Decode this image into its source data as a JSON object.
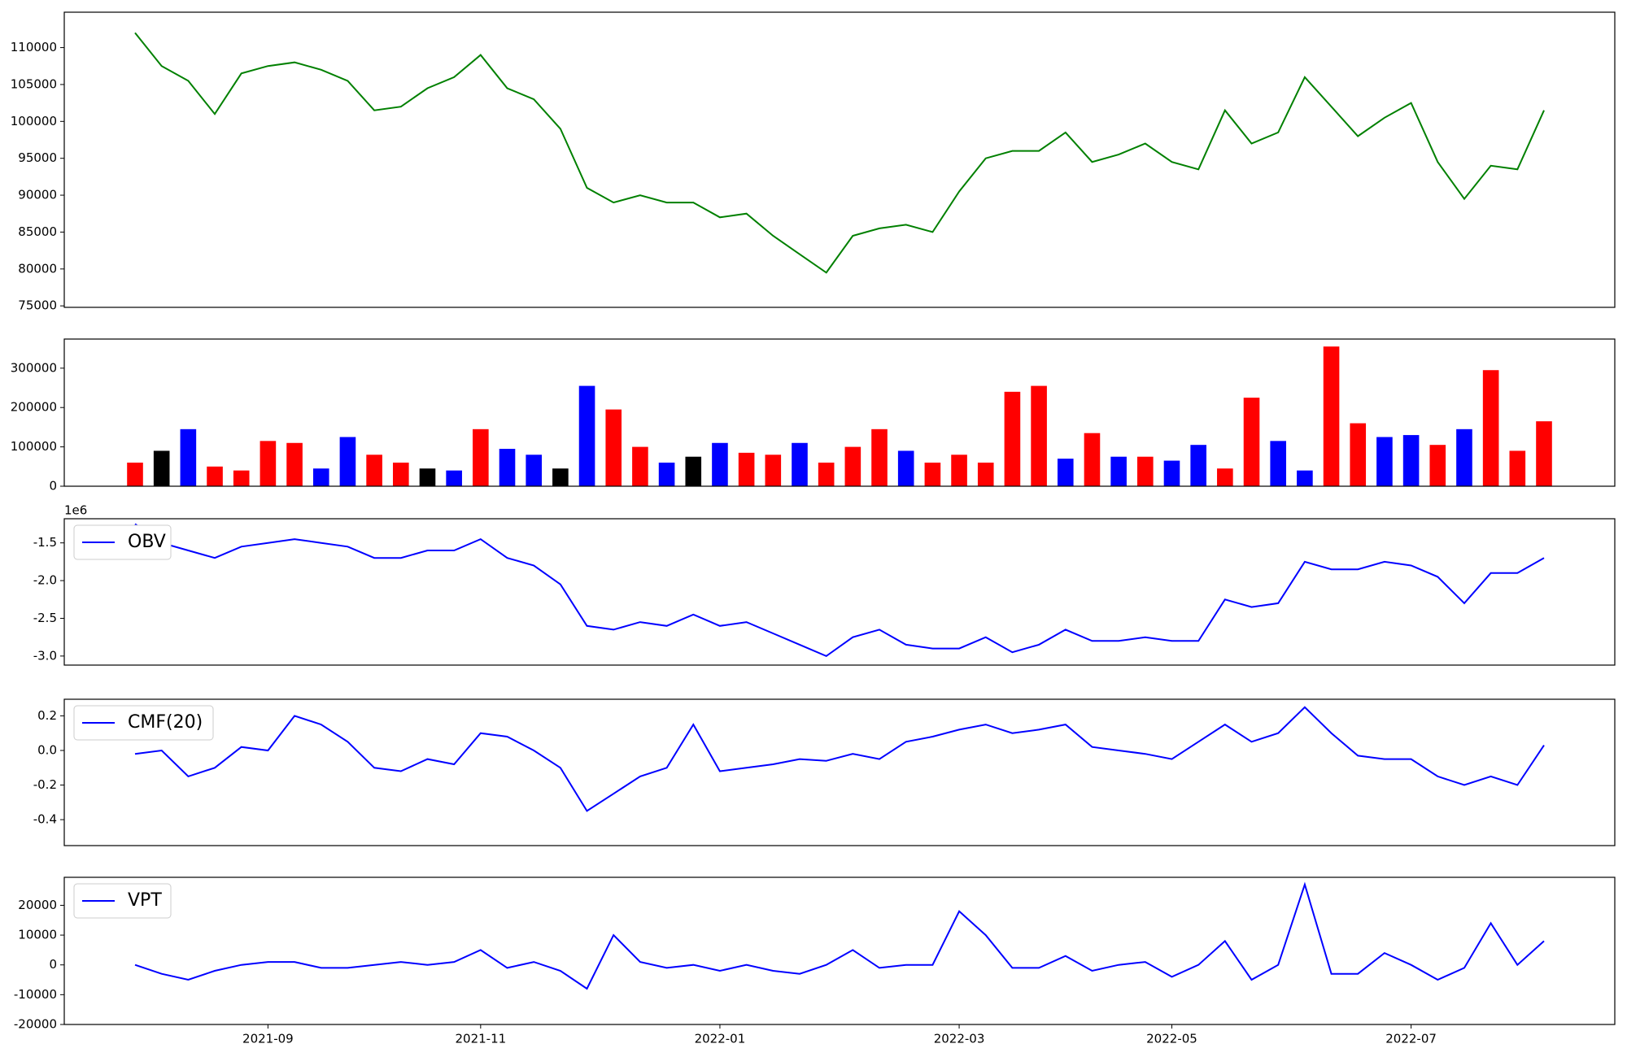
{
  "chart_data": [
    {
      "type": "line",
      "color": "green",
      "values": [
        112000,
        107500,
        105500,
        101000,
        106500,
        107500,
        108000,
        107000,
        105500,
        101500,
        102000,
        104500,
        106000,
        109000,
        104500,
        103000,
        99000,
        91000,
        89000,
        90000,
        89000,
        89000,
        87000,
        87500,
        84500,
        82000,
        79500,
        84500,
        85500,
        86000,
        85000,
        90500,
        95000,
        96000,
        96000,
        98500,
        94500,
        95500,
        97000,
        94500,
        93500,
        101500,
        97000,
        98500,
        106000,
        102000,
        98000,
        100500,
        102500,
        94500,
        89500,
        94000,
        93500,
        101500
      ],
      "ylim": [
        74800,
        114800
      ],
      "yticks": [
        75000,
        80000,
        85000,
        90000,
        95000,
        100000,
        105000,
        110000
      ]
    },
    {
      "type": "bar",
      "values": [
        60000,
        90000,
        145000,
        50000,
        40000,
        115000,
        110000,
        45000,
        125000,
        80000,
        60000,
        45000,
        40000,
        145000,
        95000,
        80000,
        45000,
        255000,
        195000,
        100000,
        60000,
        75000,
        110000,
        85000,
        80000,
        110000,
        60000,
        100000,
        145000,
        90000,
        60000,
        80000,
        60000,
        240000,
        255000,
        70000,
        135000,
        75000,
        75000,
        65000,
        105000,
        45000,
        225000,
        115000,
        40000,
        355000,
        160000,
        125000,
        130000,
        105000,
        145000,
        295000,
        90000,
        165000
      ],
      "colors": [
        "red",
        "black",
        "blue",
        "red",
        "red",
        "red",
        "red",
        "blue",
        "blue",
        "red",
        "red",
        "black",
        "blue",
        "red",
        "blue",
        "blue",
        "black",
        "blue",
        "red",
        "red",
        "blue",
        "black",
        "blue",
        "red",
        "red",
        "blue",
        "red",
        "red",
        "red",
        "blue",
        "red",
        "red",
        "red",
        "red",
        "red",
        "blue",
        "red",
        "blue",
        "red",
        "blue",
        "blue",
        "red",
        "red",
        "blue",
        "blue",
        "red",
        "red",
        "blue",
        "blue",
        "red",
        "blue",
        "red",
        "red",
        "red"
      ],
      "ylim": [
        0,
        374000
      ],
      "yticks": [
        0,
        100000,
        200000,
        300000
      ]
    },
    {
      "type": "line",
      "offset_label": "1e6",
      "legend": "upper left",
      "series": [
        {
          "name": "OBV",
          "color": "blue",
          "values": [
            -1.25,
            -1.5,
            -1.6,
            -1.7,
            -1.55,
            -1.5,
            -1.45,
            -1.5,
            -1.55,
            -1.7,
            -1.7,
            -1.6,
            -1.6,
            -1.45,
            -1.7,
            -1.8,
            -2.05,
            -2.6,
            -2.65,
            -2.55,
            -2.6,
            -2.45,
            -2.6,
            -2.55,
            -2.7,
            -2.85,
            -3.0,
            -2.75,
            -2.65,
            -2.85,
            -2.9,
            -2.9,
            -2.75,
            -2.95,
            -2.85,
            -2.65,
            -2.8,
            -2.8,
            -2.75,
            -2.8,
            -2.8,
            -2.25,
            -2.35,
            -2.3,
            -1.75,
            -1.85,
            -1.85,
            -1.75,
            -1.8,
            -1.95,
            -2.3,
            -1.9,
            -1.9,
            -1.7
          ]
        }
      ],
      "ylim": [
        -3.12,
        -1.18
      ],
      "yticks": [
        {
          "value": -3,
          "label": "-3.0"
        },
        -2.5,
        {
          "value": -2,
          "label": "-2.0"
        },
        -1.5
      ]
    },
    {
      "type": "line",
      "legend": "upper left",
      "series": [
        {
          "name": "CMF(20)",
          "color": "blue",
          "values": [
            -0.02,
            0.0,
            -0.15,
            -0.1,
            0.02,
            0.0,
            0.2,
            0.15,
            0.05,
            -0.1,
            -0.12,
            -0.05,
            -0.08,
            0.1,
            0.08,
            0.0,
            -0.1,
            -0.35,
            -0.25,
            -0.15,
            -0.1,
            0.15,
            -0.12,
            -0.1,
            -0.08,
            -0.05,
            -0.06,
            -0.02,
            -0.05,
            0.05,
            0.08,
            0.12,
            0.15,
            0.1,
            0.12,
            0.15,
            0.02,
            0.0,
            -0.02,
            -0.05,
            0.05,
            0.15,
            0.05,
            0.1,
            0.25,
            0.1,
            -0.03,
            -0.05,
            -0.05,
            -0.15,
            -0.2,
            -0.15,
            -0.2,
            0.03
          ]
        }
      ],
      "ylim": [
        -0.55,
        0.296
      ],
      "yticks": [
        -0.4,
        -0.2,
        {
          "value": 0,
          "label": "0.0"
        },
        0.2
      ]
    },
    {
      "type": "line",
      "legend": "upper left",
      "series": [
        {
          "name": "VPT",
          "color": "blue",
          "values": [
            0,
            -3000,
            -5000,
            -2000,
            0,
            1000,
            1000,
            -1000,
            -1000,
            0,
            1000,
            0,
            1000,
            5000,
            -1000,
            1000,
            -2000,
            -8000,
            10000,
            1000,
            -1000,
            0,
            -2000,
            0,
            -2000,
            -3000,
            0,
            5000,
            -1000,
            0,
            0,
            18000,
            10000,
            -1000,
            -1000,
            3000,
            -2000,
            0,
            1000,
            -4000,
            0,
            8000,
            -5000,
            0,
            27000,
            -3000,
            -3000,
            4000,
            0,
            -5000,
            -1000,
            14000,
            0,
            8000
          ]
        }
      ],
      "ylim": [
        -20000,
        29400
      ],
      "yticks": [
        -20000,
        -10000,
        0,
        10000,
        20000
      ],
      "x": [
        "2021-08",
        "2021-08",
        "2021-08",
        "2021-08",
        "2021-08",
        "2021-09",
        "2021-09",
        "2021-09",
        "2021-09",
        "2021-10",
        "2021-10",
        "2021-10",
        "2021-10",
        "2021-11",
        "2021-11",
        "2021-11",
        "2021-11",
        "2021-11",
        "2021-12",
        "2021-12",
        "2021-12",
        "2021-12",
        "2022-01",
        "2022-01",
        "2022-01",
        "2022-01",
        "2022-01",
        "2022-02",
        "2022-02",
        "2022-02",
        "2022-02",
        "2022-03",
        "2022-03",
        "2022-03",
        "2022-03",
        "2022-04",
        "2022-04",
        "2022-04",
        "2022-04",
        "2022-05",
        "2022-05",
        "2022-05",
        "2022-05",
        "2022-05",
        "2022-06",
        "2022-06",
        "2022-06",
        "2022-06",
        "2022-07",
        "2022-07",
        "2022-07",
        "2022-07",
        "2022-08",
        "2022-08"
      ],
      "xticks": [
        "2021-09",
        "2021-11",
        "2022-01",
        "2022-03",
        "2022-05",
        "2022-07"
      ]
    }
  ]
}
